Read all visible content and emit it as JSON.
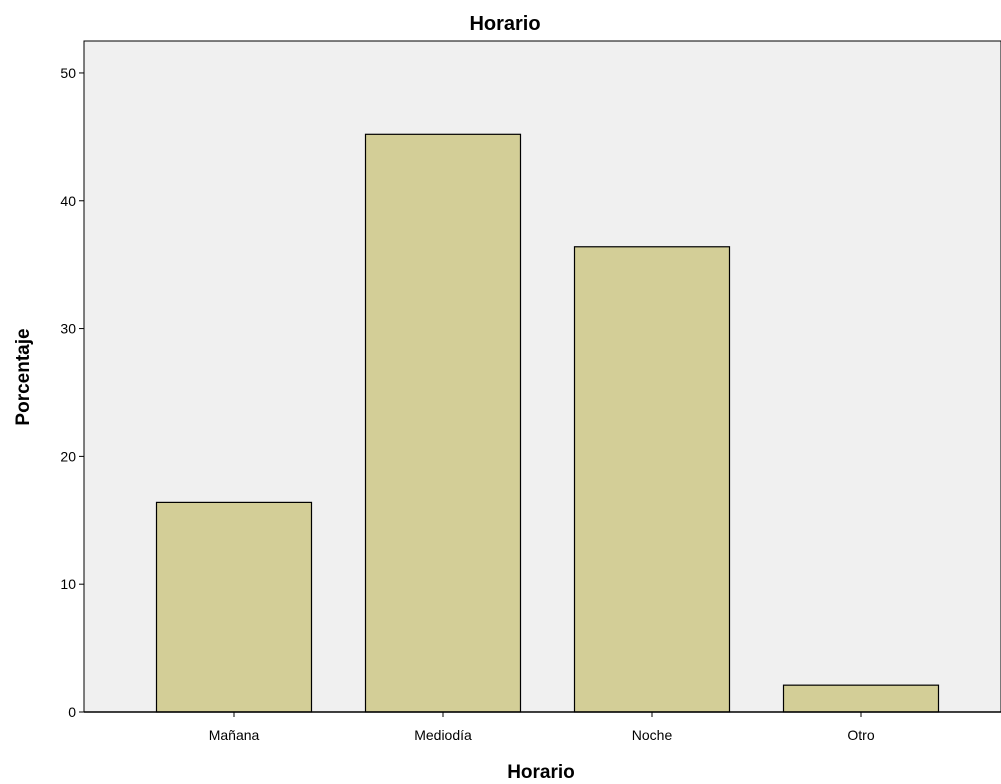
{
  "chart_data": {
    "type": "bar",
    "title": "Horario",
    "xlabel": "Horario",
    "ylabel": "Porcentaje",
    "categories": [
      "Mañana",
      "Mediodía",
      "Noche",
      "Otro"
    ],
    "values": [
      16.4,
      45.2,
      36.4,
      2.1
    ],
    "ylim": [
      0,
      52.5
    ],
    "yticks": [
      0,
      10,
      20,
      30,
      40,
      50
    ],
    "grid": false,
    "legend": "none",
    "colors": {
      "plot_background": "#f0f0f0",
      "bar_fill": "#d3ce97",
      "bar_stroke": "#000000"
    }
  }
}
